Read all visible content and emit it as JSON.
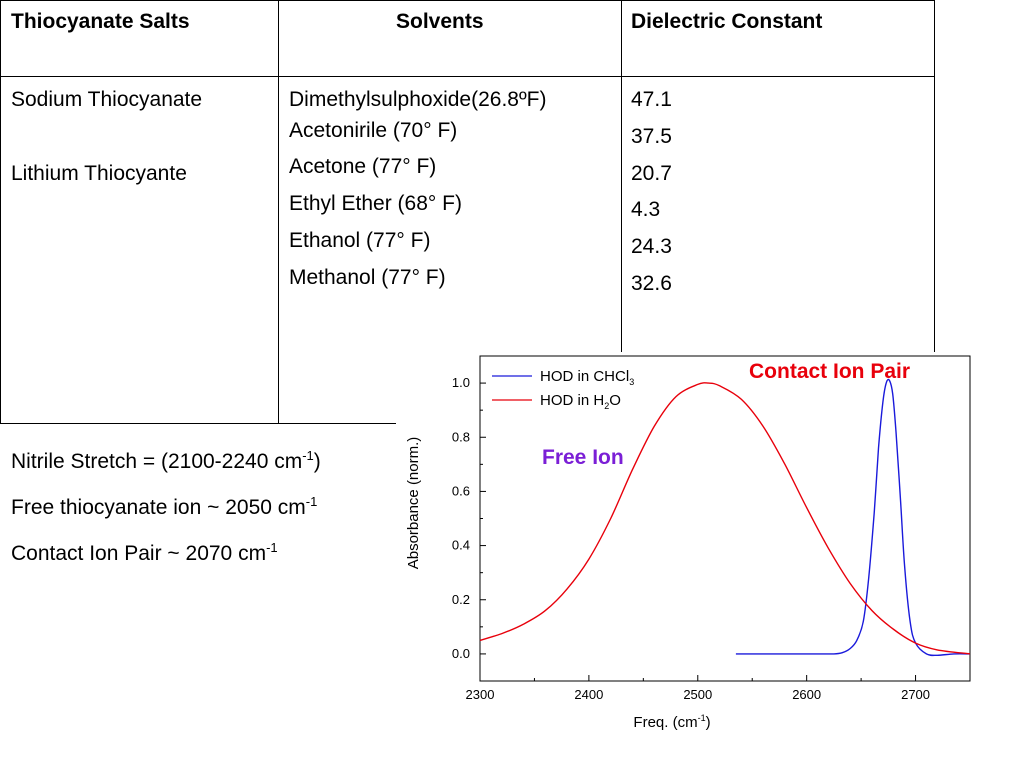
{
  "table": {
    "headers": [
      "Thiocyanate Salts",
      "Solvents",
      "Dielectric Constant"
    ],
    "salts": [
      "Sodium Thiocyanate",
      "Lithium Thiocyante"
    ],
    "solvents": [
      "Dimethylsulphoxide(26.8ºF)",
      "Acetonirile (70°  F)",
      "Acetone (77°  F)",
      "Ethyl Ether (68°  F)",
      "Ethanol (77°  F)",
      "Methanol (77°  F)"
    ],
    "dielectric": [
      "47.1",
      "37.5",
      "20.7",
      "4.3",
      "24.3",
      "32.6"
    ]
  },
  "notes": [
    {
      "text": "Nitrile Stretch = (2100-2240 cm",
      "sup": "-1",
      "tail": ")"
    },
    {
      "text": "Free thiocyanate ion ~ 2050 cm",
      "sup": "-1",
      "tail": ""
    },
    {
      "text": "Contact Ion Pair ~ 2070 cm",
      "sup": "-1",
      "tail": ""
    }
  ],
  "chart_data": {
    "type": "line",
    "xlabel": "Freq. (cm",
    "xlabel_sup": "-1",
    "xlabel_tail": ")",
    "ylabel": "Absorbance (norm.)",
    "xlim": [
      2300,
      2750
    ],
    "ylim": [
      -0.1,
      1.1
    ],
    "xticks": [
      2300,
      2400,
      2500,
      2600,
      2700
    ],
    "yticks": [
      "0.0",
      "0.2",
      "0.4",
      "0.6",
      "0.8",
      "1.0"
    ],
    "legend_placement": "top-left",
    "grid": false,
    "annotations": [
      {
        "text": "Contact Ion Pair",
        "color": "#e8000b"
      },
      {
        "text": "Free Ion",
        "color": "#7b1fd6"
      }
    ],
    "series": [
      {
        "name": "HOD in CHCl",
        "name_sub": "3",
        "color": "#1a1adb",
        "x": [
          2535,
          2560,
          2600,
          2625,
          2633,
          2640,
          2646,
          2652,
          2657,
          2662,
          2666,
          2670,
          2673,
          2676,
          2679,
          2682,
          2686,
          2690,
          2695,
          2700,
          2710,
          2720,
          2735,
          2750
        ],
        "y": [
          0.0,
          0.0,
          0.0,
          0.0,
          0.005,
          0.02,
          0.05,
          0.12,
          0.28,
          0.52,
          0.76,
          0.93,
          1.0,
          1.01,
          0.96,
          0.82,
          0.58,
          0.32,
          0.12,
          0.04,
          0.0,
          -0.005,
          0.0,
          0.0
        ]
      },
      {
        "name": "HOD in H",
        "name_sub": "2",
        "name_tail": "O",
        "color": "#e8000b",
        "x": [
          2300,
          2320,
          2340,
          2360,
          2380,
          2400,
          2420,
          2440,
          2460,
          2480,
          2500,
          2510,
          2520,
          2540,
          2560,
          2580,
          2600,
          2620,
          2640,
          2660,
          2680,
          2700,
          2720,
          2750
        ],
        "y": [
          0.05,
          0.075,
          0.11,
          0.16,
          0.24,
          0.35,
          0.5,
          0.68,
          0.84,
          0.95,
          0.995,
          1.0,
          0.99,
          0.94,
          0.84,
          0.7,
          0.54,
          0.39,
          0.26,
          0.16,
          0.09,
          0.04,
          0.015,
          0.0
        ]
      }
    ]
  }
}
